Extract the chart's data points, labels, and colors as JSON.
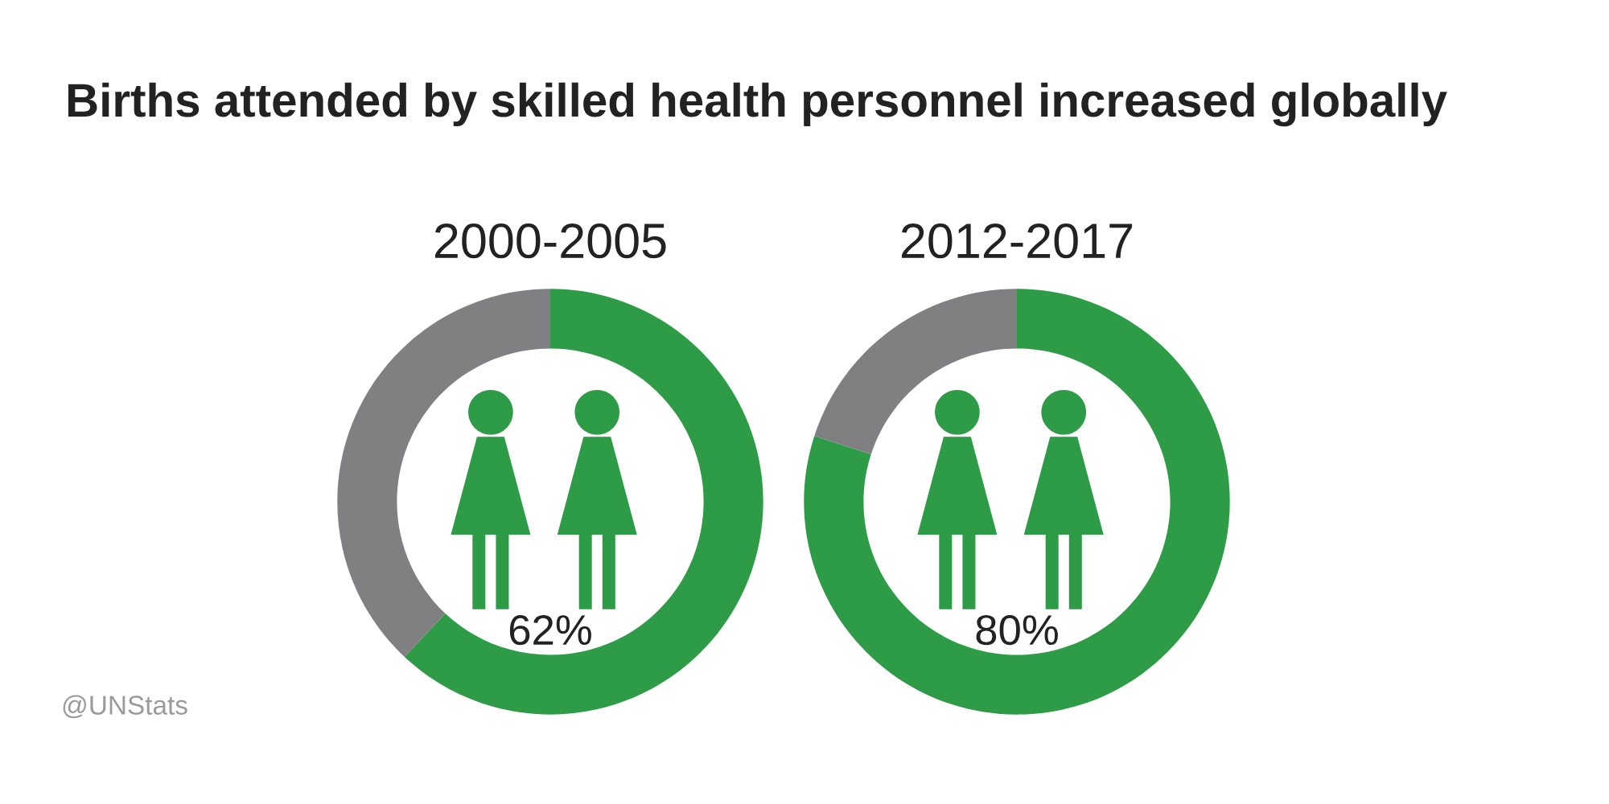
{
  "chart_data": [
    {
      "type": "donut",
      "title": "2000-2005",
      "categories": [
        null,
        null
      ],
      "values": [
        62,
        38
      ],
      "colors": [
        "#2e9b47",
        "#808083"
      ],
      "value_labels": [
        "62%",
        null
      ],
      "annotations": [
        "Births attended by skilled health personnel increased globally",
        "@UNStats"
      ]
    },
    {
      "type": "donut",
      "title": "2012-2017",
      "categories": [
        null,
        null
      ],
      "values": [
        80,
        20
      ],
      "colors": [
        "#2e9b47",
        "#808083"
      ],
      "value_labels": [
        "80%",
        null
      ]
    }
  ]
}
